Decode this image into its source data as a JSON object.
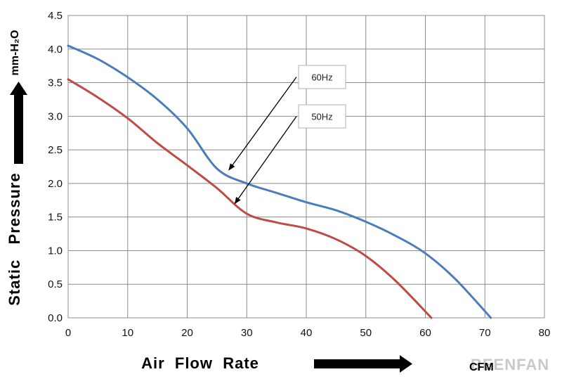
{
  "chart_data": {
    "type": "line",
    "xlabel": "Air  Flow  Rate",
    "xunit": "CFM",
    "ylabel": "Static   Pressure",
    "yunit": "mm-H₂O",
    "xlim": [
      0,
      80
    ],
    "ylim": [
      0,
      4.5
    ],
    "xticks": [
      "0",
      "10",
      "20",
      "30",
      "40",
      "50",
      "60",
      "70",
      "80"
    ],
    "yticks": [
      "0.0",
      "0.5",
      "1.0",
      "1.5",
      "2.0",
      "2.5",
      "3.0",
      "3.5",
      "4.0",
      "4.5"
    ],
    "grid": true,
    "series": [
      {
        "name": "60Hz",
        "color": "#4a7ebb",
        "x": [
          0,
          5,
          10,
          15,
          20,
          25,
          30,
          35,
          40,
          45,
          50,
          55,
          60,
          65,
          71
        ],
        "y": [
          4.05,
          3.85,
          3.58,
          3.25,
          2.82,
          2.22,
          2.0,
          1.86,
          1.72,
          1.6,
          1.43,
          1.22,
          0.96,
          0.58,
          0.0
        ]
      },
      {
        "name": "50Hz",
        "color": "#be4b48",
        "x": [
          0,
          5,
          10,
          15,
          20,
          25,
          30,
          35,
          40,
          45,
          50,
          55,
          61
        ],
        "y": [
          3.55,
          3.28,
          2.97,
          2.6,
          2.27,
          1.93,
          1.55,
          1.42,
          1.33,
          1.17,
          0.92,
          0.55,
          0.0
        ]
      }
    ],
    "annotations": [
      {
        "text": "60Hz",
        "series": "60Hz",
        "point": [
          27,
          2.2
        ]
      },
      {
        "text": "50Hz",
        "series": "50Hz",
        "point": [
          28,
          1.7
        ]
      }
    ],
    "watermark": "BEENFAN"
  }
}
